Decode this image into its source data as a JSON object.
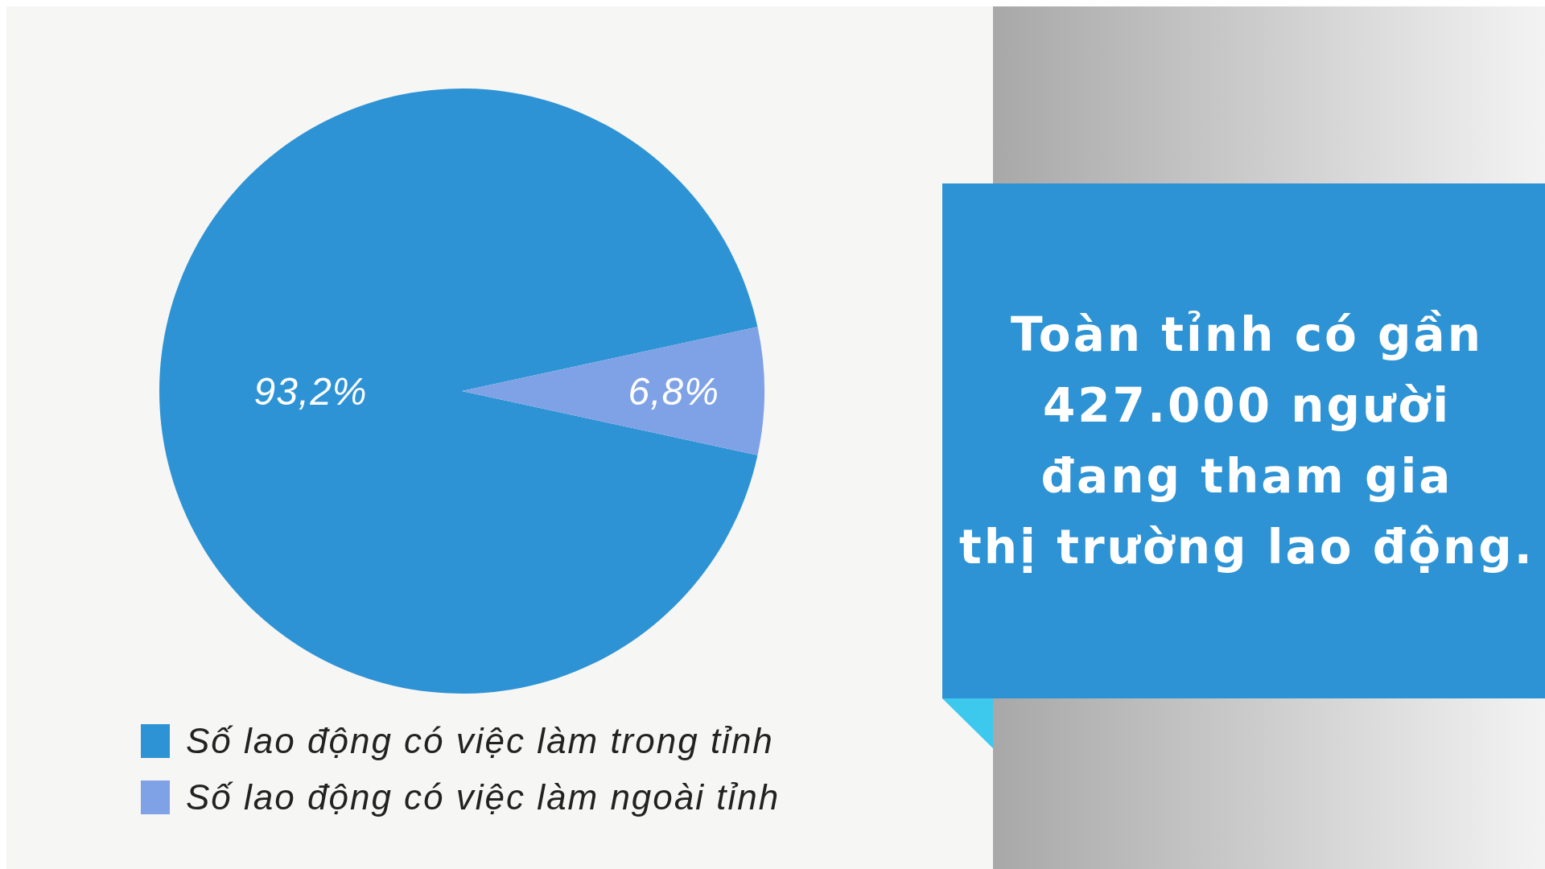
{
  "chart_data": {
    "type": "pie",
    "categories": [
      "Số lao động có việc làm trong tỉnh",
      "Số lao động có việc làm ngoài tỉnh"
    ],
    "values": [
      93.2,
      6.8
    ],
    "colors": [
      "#2e93d4",
      "#7fa2e6"
    ],
    "value_labels": [
      "93,2%",
      "6,8%"
    ],
    "legend": "bottom",
    "annotations": [
      "Toàn tỉnh có gần\n427.000 người\nđang tham gia\nthị trường lao động."
    ]
  }
}
